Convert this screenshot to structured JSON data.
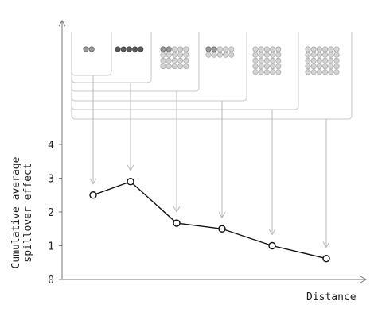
{
  "chart_data": {
    "type": "line",
    "xlabel": "Distance",
    "ylabel": "Cumulative average\nspillover effect",
    "ylim": [
      0,
      4
    ],
    "yticks": [
      0,
      1,
      2,
      3,
      4
    ],
    "grid": false,
    "series": [
      {
        "values": [
          2.5,
          2.9,
          1.67,
          1.5,
          1.0,
          0.62
        ]
      }
    ],
    "groups": [
      {
        "dark": 2,
        "light": 0,
        "cols": 2
      },
      {
        "dark": 5,
        "light": 0,
        "cols": 5
      },
      {
        "dark": 2,
        "light": 18,
        "cols": 5
      },
      {
        "dark": 2,
        "light": 8,
        "cols": 5
      },
      {
        "dark": 0,
        "light": 25,
        "cols": 5
      },
      {
        "dark": 0,
        "light": 30,
        "cols": 6
      }
    ],
    "colors": {
      "line": "#111111",
      "bracket": "#c8c8c8",
      "dot_dark": "#5a5a5a",
      "dot_light": "#d4d4d4"
    }
  }
}
